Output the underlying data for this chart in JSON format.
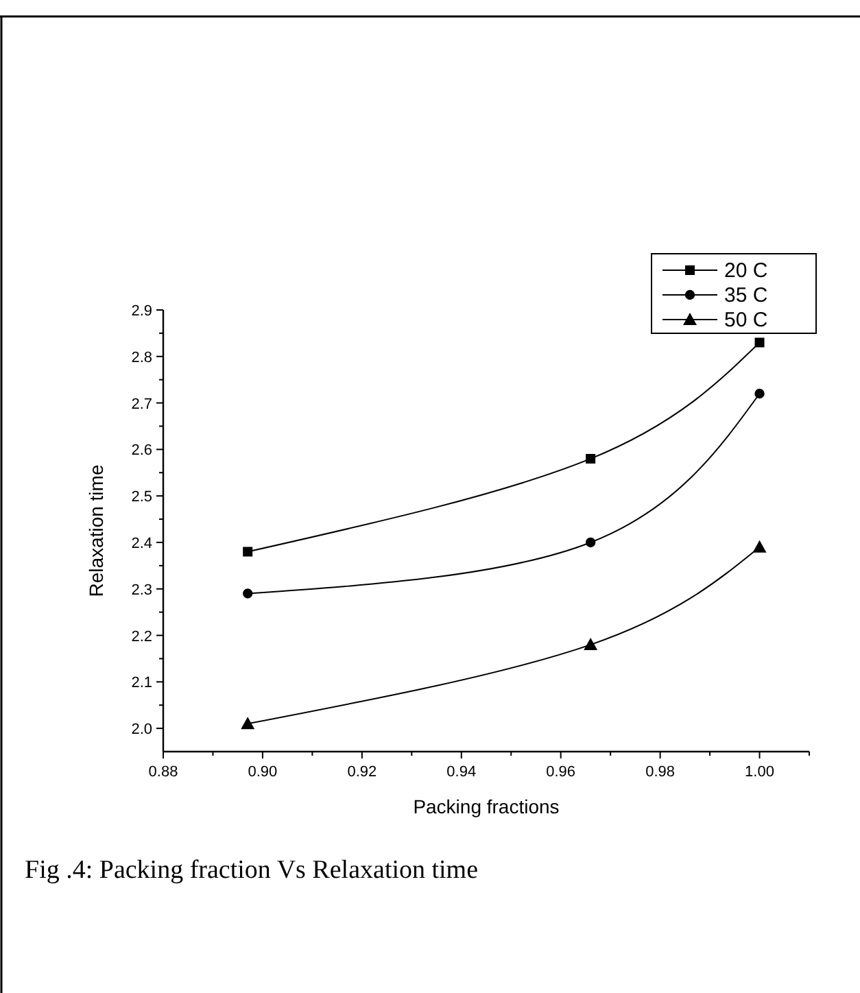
{
  "chart_data": {
    "type": "line",
    "xlabel": "Packing fractions",
    "ylabel": "Relaxation time",
    "annotations": [
      "Fig .4: Packing fraction Vs Relaxation time"
    ],
    "x": [
      0.897,
      0.966,
      1.0
    ],
    "series": [
      {
        "name": "20 C",
        "color": "#000000",
        "marker": "square",
        "values": [
          2.38,
          2.58,
          2.83
        ]
      },
      {
        "name": "35 C",
        "color": "#000000",
        "marker": "circle",
        "values": [
          2.29,
          2.4,
          2.72
        ]
      },
      {
        "name": "50 C",
        "color": "#000000",
        "marker": "triangle",
        "values": [
          2.01,
          2.18,
          2.39
        ]
      }
    ],
    "xlim": [
      0.88,
      1.01
    ],
    "xticks": [
      0.88,
      {
        "value": 0.89,
        "label": null
      },
      {
        "value": 0.9,
        "label": "0.90"
      },
      {
        "value": 0.91,
        "label": null
      },
      0.92,
      {
        "value": 0.93,
        "label": null
      },
      0.94,
      {
        "value": 0.95,
        "label": null
      },
      0.96,
      {
        "value": 0.97,
        "label": null
      },
      0.98,
      {
        "value": 0.99,
        "label": null
      },
      {
        "value": 1.0,
        "label": "1.00"
      },
      {
        "value": 1.01,
        "label": null
      }
    ],
    "ylim": [
      1.95,
      2.9
    ],
    "yticks": [
      {
        "value": 2.0,
        "label": "2.0"
      },
      {
        "value": 2.05,
        "label": null
      },
      2.1,
      {
        "value": 2.15,
        "label": null
      },
      2.2,
      {
        "value": 2.25,
        "label": null
      },
      2.3,
      {
        "value": 2.35,
        "label": null
      },
      2.4,
      {
        "value": 2.45,
        "label": null
      },
      2.5,
      {
        "value": 2.55,
        "label": null
      },
      2.6,
      {
        "value": 2.65,
        "label": null
      },
      2.7,
      {
        "value": 2.75,
        "label": null
      },
      2.8,
      {
        "value": 2.85,
        "label": null
      },
      2.9
    ],
    "grid": false,
    "legend": "top right",
    "line_style": "solid"
  }
}
